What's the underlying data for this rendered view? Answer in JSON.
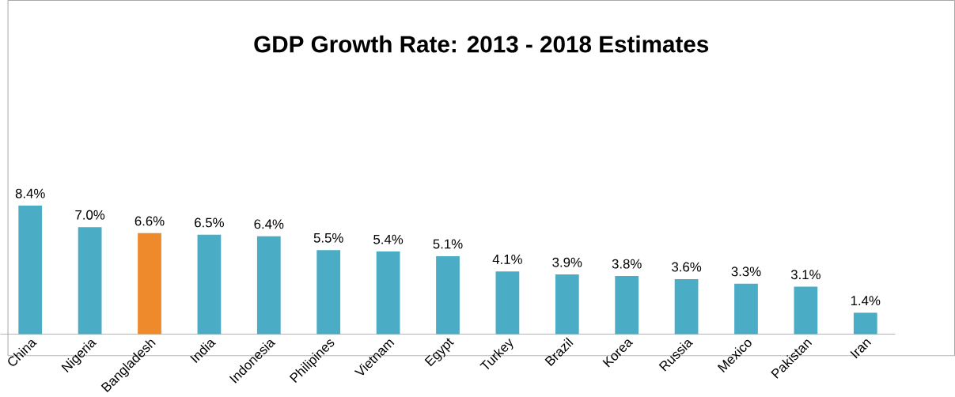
{
  "chart_data": {
    "type": "bar",
    "title": "GDP Growth Rate: 2013 - 2018 Estimates",
    "categories": [
      "China",
      "Nigeria",
      "Bangladesh",
      "India",
      "Indonesia",
      "Philipines",
      "Vietnam",
      "Egypt",
      "Turkey",
      "Brazil",
      "Korea",
      "Russia",
      "Mexico",
      "Pakistan",
      "Iran"
    ],
    "values": [
      8.4,
      7.0,
      6.6,
      6.5,
      6.4,
      5.5,
      5.4,
      5.1,
      4.1,
      3.9,
      3.8,
      3.6,
      3.3,
      3.1,
      1.4
    ],
    "colors": [
      "#4bacc6",
      "#4bacc6",
      "#ee8a2c",
      "#4bacc6",
      "#4bacc6",
      "#4bacc6",
      "#4bacc6",
      "#4bacc6",
      "#4bacc6",
      "#4bacc6",
      "#4bacc6",
      "#4bacc6",
      "#4bacc6",
      "#4bacc6",
      "#4bacc6"
    ],
    "value_labels": [
      "8.4%",
      "7.0%",
      "6.6%",
      "6.5%",
      "6.4%",
      "5.5%",
      "5.4%",
      "5.1%",
      "4.1%",
      "3.9%",
      "3.8%",
      "3.6%",
      "3.3%",
      "3.1%",
      "1.4%"
    ]
  }
}
